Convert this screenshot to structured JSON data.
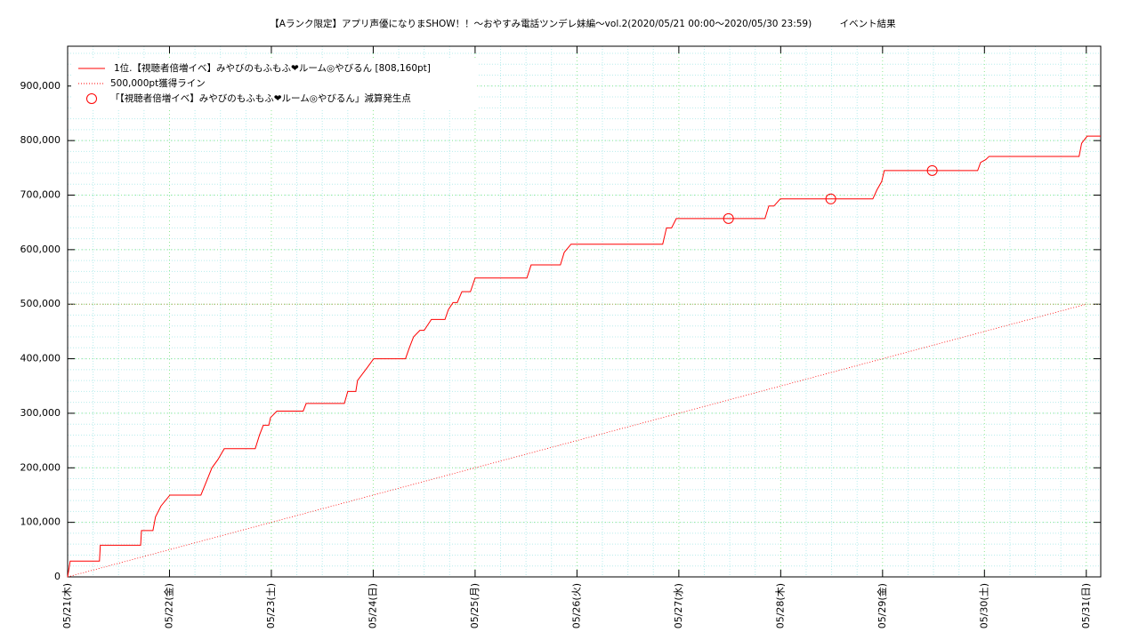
{
  "chart_data": {
    "type": "line",
    "title": "【Aランク限定】アプリ声優になりまSHOW！！〜おやすみ電話ツンデレ妹編〜vol.2(2020/05/21 00:00〜2020/05/30 23:59)　　　イベント結果",
    "xlim": [
      0,
      243.4
    ],
    "ylim": [
      0,
      973000
    ],
    "xticks": [
      {
        "value": 0,
        "label": "05/21(木)"
      },
      {
        "value": 24,
        "label": "05/22(金)"
      },
      {
        "value": 48,
        "label": "05/23(土)"
      },
      {
        "value": 72,
        "label": "05/24(日)"
      },
      {
        "value": 96,
        "label": "05/25(月)"
      },
      {
        "value": 120,
        "label": "05/26(火)"
      },
      {
        "value": 144,
        "label": "05/27(水)"
      },
      {
        "value": 168,
        "label": "05/28(木)"
      },
      {
        "value": 192,
        "label": "05/29(金)"
      },
      {
        "value": 216,
        "label": "05/30(土)"
      },
      {
        "value": 240,
        "label": "05/31(日)"
      }
    ],
    "yticks": [
      0,
      {
        "value": 100000,
        "label": "100,000"
      },
      {
        "value": 200000,
        "label": "200,000"
      },
      {
        "value": 300000,
        "label": "300,000"
      },
      {
        "value": 400000,
        "label": "400,000"
      },
      {
        "value": 500000,
        "label": "500,000"
      },
      {
        "value": 600000,
        "label": "600,000"
      },
      {
        "value": 700000,
        "label": "700,000"
      },
      {
        "value": 800000,
        "label": "800,000"
      },
      {
        "value": 900000,
        "label": "900,000"
      }
    ],
    "grid": true,
    "x_minor": 4,
    "y_minor": 5,
    "reference_line": {
      "value": 500000,
      "color": "#b8a860"
    },
    "legend": "top-left",
    "series": [
      {
        "name": "1位.【視聴者倍増イベ】みやびのもふもふ❤ルーム◎やびるん [808,160pt]",
        "color": "#ff0000",
        "style": "line",
        "x": [
          0,
          0.6,
          7.5,
          7.7,
          17.2,
          17.4,
          20.1,
          20.7,
          22.0,
          24.1,
          31.4,
          32.7,
          34.0,
          35.4,
          36.9,
          44.2,
          45.2,
          46.1,
          47.4,
          47.8,
          49.3,
          55.5,
          56.2,
          65.2,
          66.0,
          67.9,
          68.3,
          70.7,
          72.1,
          79.6,
          80.5,
          81.5,
          83.0,
          84.0,
          85.7,
          88.9,
          89.7,
          90.8,
          91.8,
          92.9,
          94.9,
          96.0,
          108.2,
          109.2,
          116.1,
          117.0,
          118.6,
          140.2,
          141.1,
          142.3,
          143.4,
          164.3,
          165.2,
          166.4,
          167.9,
          189.7,
          190.7,
          191.8,
          192.4,
          214.4,
          215.1,
          216.3,
          217.1,
          238.3,
          238.9,
          240.2,
          243.4
        ],
        "values": [
          0,
          29000,
          29000,
          58000,
          58000,
          85000,
          85000,
          110000,
          130000,
          150000,
          150000,
          175000,
          200000,
          215000,
          235000,
          235000,
          260000,
          278000,
          278000,
          292000,
          304000,
          304000,
          318000,
          318000,
          340000,
          340000,
          360000,
          385000,
          400000,
          400000,
          420000,
          440000,
          452000,
          452000,
          472000,
          472000,
          490000,
          503000,
          503000,
          523000,
          523000,
          548000,
          548000,
          572000,
          572000,
          595000,
          610000,
          610000,
          640000,
          640000,
          657000,
          657000,
          680000,
          680000,
          693000,
          693000,
          710000,
          725000,
          745000,
          745000,
          760000,
          765000,
          771000,
          771000,
          795000,
          808160,
          808160
        ]
      },
      {
        "name": "500,000pt獲得ライン",
        "color": "#ff0000",
        "style": "dotted",
        "x": [
          0,
          240
        ],
        "values": [
          0,
          500000
        ]
      },
      {
        "name": "「【視聴者倍増イベ】みやびのもふもふ❤ルーム◎やびるん」減算発生点",
        "color": "#ff0000",
        "style": "circle",
        "x": [
          155.7,
          179.8,
          203.7
        ],
        "values": [
          657000,
          693000,
          745000
        ]
      }
    ]
  }
}
